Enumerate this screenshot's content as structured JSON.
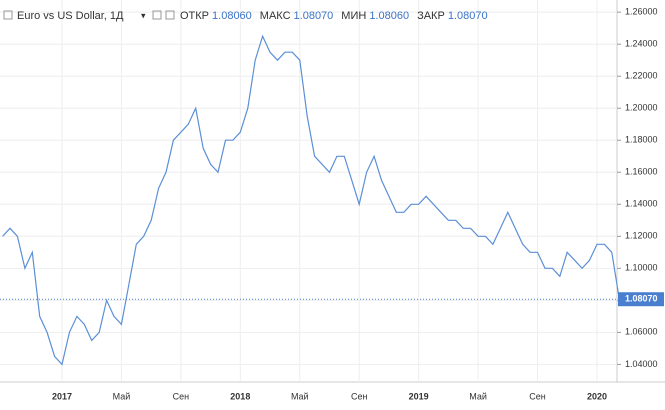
{
  "header": {
    "title": "Euro vs US Dollar, 1Д",
    "fields": [
      {
        "label": "ОТКР",
        "value": "1.08060"
      },
      {
        "label": "МАКС",
        "value": "1.08070"
      },
      {
        "label": "МИН",
        "value": "1.08060"
      },
      {
        "label": "ЗАКР",
        "value": "1.08070"
      }
    ]
  },
  "chart_data": {
    "type": "line",
    "categories": [
      null,
      null,
      null,
      null,
      null,
      null,
      null,
      null,
      "2017",
      null,
      null,
      null,
      null,
      null,
      null,
      null,
      "Май",
      null,
      null,
      null,
      null,
      null,
      null,
      null,
      "Сен",
      null,
      null,
      null,
      null,
      null,
      null,
      null,
      "2018",
      null,
      null,
      null,
      null,
      null,
      null,
      null,
      "Май",
      null,
      null,
      null,
      null,
      null,
      null,
      null,
      "Сен",
      null,
      null,
      null,
      null,
      null,
      null,
      null,
      "2019",
      null,
      null,
      null,
      null,
      null,
      null,
      null,
      "Май",
      null,
      null,
      null,
      null,
      null,
      null,
      null,
      "Сен",
      null,
      null,
      null,
      null,
      null,
      null,
      null,
      "2020",
      null,
      null,
      null
    ],
    "series": [
      {
        "name": "EUR/USD",
        "color": "#5b8fd6",
        "values": [
          1.12,
          1.125,
          1.12,
          1.1,
          1.11,
          1.07,
          1.06,
          1.045,
          1.04,
          1.06,
          1.07,
          1.065,
          1.055,
          1.06,
          1.08,
          1.07,
          1.065,
          1.09,
          1.115,
          1.12,
          1.13,
          1.15,
          1.16,
          1.18,
          1.185,
          1.19,
          1.2,
          1.175,
          1.165,
          1.16,
          1.18,
          1.18,
          1.185,
          1.2,
          1.23,
          1.245,
          1.235,
          1.23,
          1.235,
          1.235,
          1.23,
          1.195,
          1.17,
          1.165,
          1.16,
          1.17,
          1.17,
          1.155,
          1.14,
          1.16,
          1.17,
          1.155,
          1.145,
          1.135,
          1.135,
          1.14,
          1.14,
          1.145,
          1.14,
          1.135,
          1.13,
          1.13,
          1.125,
          1.125,
          1.12,
          1.12,
          1.115,
          1.125,
          1.135,
          1.125,
          1.115,
          1.11,
          1.11,
          1.1,
          1.1,
          1.095,
          1.11,
          1.105,
          1.1,
          1.105,
          1.115,
          1.115,
          1.11,
          1.0807
        ]
      }
    ],
    "ylim": [
      1.029,
      1.2676
    ],
    "yticks": [
      {
        "value": 1.04,
        "label": "1.04000"
      },
      {
        "value": 1.06,
        "label": "1.06000"
      },
      {
        "value": 1.08,
        "label": "1.08000"
      },
      {
        "value": 1.1,
        "label": "1.10000"
      },
      {
        "value": 1.12,
        "label": "1.12000"
      },
      {
        "value": 1.14,
        "label": "1.14000"
      },
      {
        "value": 1.16,
        "label": "1.16000"
      },
      {
        "value": 1.18,
        "label": "1.18000"
      },
      {
        "value": 1.2,
        "label": "1.20000"
      },
      {
        "value": 1.22,
        "label": "1.22000"
      },
      {
        "value": 1.24,
        "label": "1.24000"
      },
      {
        "value": 1.26,
        "label": "1.26000"
      }
    ],
    "last_price": {
      "value": 1.0807,
      "label": "1.08070"
    },
    "grid": true
  }
}
